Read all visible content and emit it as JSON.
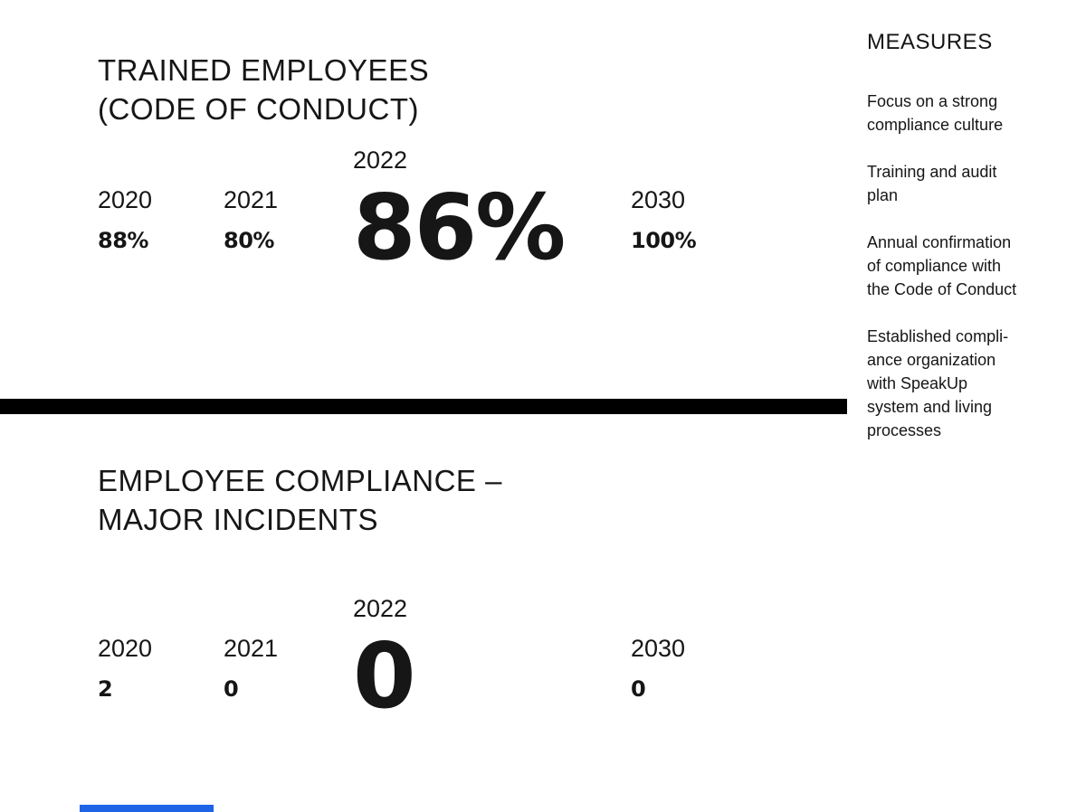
{
  "page": {
    "background": "#ffffff",
    "text_color": "#161616",
    "divider_color": "#000000",
    "accent_blue": "#1E64E6"
  },
  "sections": [
    {
      "title": "TRAINED EMPLOYEES\n(CODE OF CONDUCT)",
      "stats": [
        {
          "year": "2020",
          "value": "88%"
        },
        {
          "year": "2021",
          "value": "80%"
        },
        {
          "year": "2022",
          "value": "86%",
          "highlight": true
        },
        {
          "year": "2030",
          "value": "100%"
        }
      ]
    },
    {
      "title": "EMPLOYEE COMPLIANCE –\nMAJOR INCIDENTS",
      "stats": [
        {
          "year": "2020",
          "value": "2"
        },
        {
          "year": "2021",
          "value": "0"
        },
        {
          "year": "2022",
          "value": "0",
          "highlight": true
        },
        {
          "year": "2030",
          "value": "0"
        }
      ]
    }
  ],
  "measures": {
    "heading": "MEASURES",
    "items": [
      "Focus on a strong\ncompliance culture",
      "Training and audit\nplan",
      "Annual confirmation\nof compliance with\nthe Code of Conduct",
      "Established compli-\nance organization\nwith SpeakUp\nsystem and living\nprocesses"
    ]
  }
}
